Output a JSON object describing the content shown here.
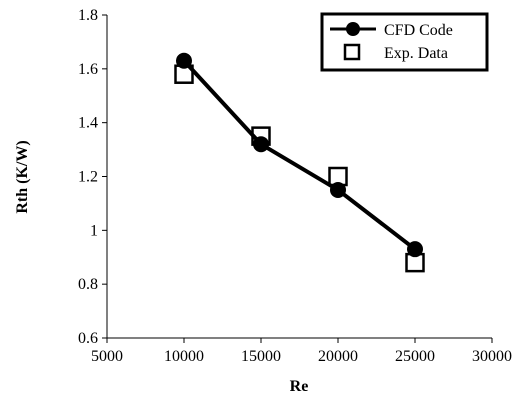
{
  "chart_data": {
    "type": "line",
    "title": "",
    "xlabel": "Re",
    "ylabel": "Rth (K/W)",
    "xlim": [
      5000,
      30000
    ],
    "ylim": [
      0.6,
      1.8
    ],
    "x_ticks": [
      5000,
      10000,
      15000,
      20000,
      25000,
      30000
    ],
    "y_ticks": [
      0.6,
      0.8,
      1,
      1.2,
      1.4,
      1.6,
      1.8
    ],
    "x_tick_labels": [
      "5000",
      "10000",
      "15000",
      "20000",
      "25000",
      "30000"
    ],
    "y_tick_labels": [
      "0.6",
      "0.8",
      "1",
      "1.2",
      "1.4",
      "1.6",
      "1.8"
    ],
    "grid": false,
    "legend_position": "top-right",
    "series": [
      {
        "name": "CFD Code",
        "marker": "circle",
        "line": true,
        "x": [
          10000,
          15000,
          20000,
          25000
        ],
        "y": [
          1.63,
          1.32,
          1.15,
          0.93
        ]
      },
      {
        "name": "Exp. Data",
        "marker": "square-open",
        "line": false,
        "x": [
          10000,
          15000,
          20000,
          25000
        ],
        "y": [
          1.58,
          1.35,
          1.2,
          0.88
        ]
      }
    ],
    "colors": {
      "line": "#000000",
      "marker": "#000000",
      "axis": "#000000",
      "background": "#ffffff"
    }
  }
}
